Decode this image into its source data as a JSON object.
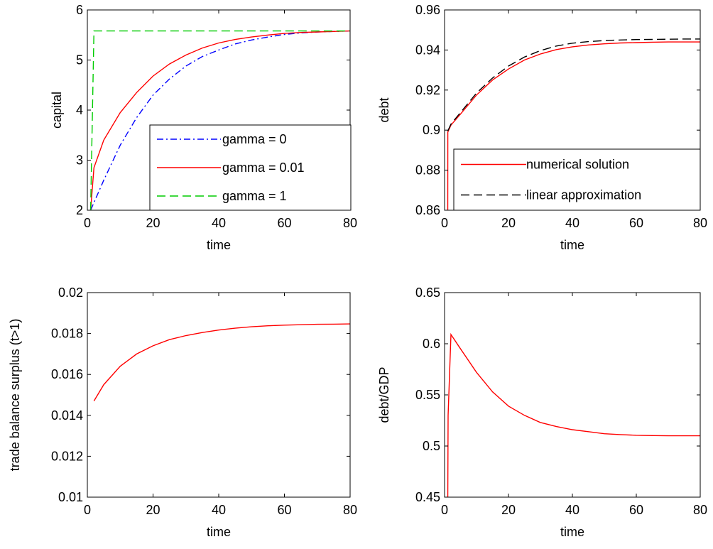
{
  "chart_data": [
    {
      "type": "line",
      "xlabel": "time",
      "ylabel": "capital",
      "xlim": [
        0,
        80
      ],
      "ylim": [
        2,
        6
      ],
      "xticks": [
        "0",
        "20",
        "40",
        "60",
        "80"
      ],
      "yticks": [
        "2",
        "3",
        "4",
        "5",
        "6"
      ],
      "grid": false,
      "legend_position": "bottom-right",
      "series": [
        {
          "name": "gamma = 0",
          "color": "#0000ff",
          "dash": "dash-dot",
          "x": [
            1,
            5,
            10,
            15,
            20,
            25,
            30,
            35,
            40,
            45,
            50,
            55,
            60,
            65,
            70,
            75,
            80
          ],
          "y": [
            2.0,
            2.6,
            3.3,
            3.85,
            4.3,
            4.62,
            4.88,
            5.07,
            5.2,
            5.32,
            5.4,
            5.46,
            5.51,
            5.54,
            5.56,
            5.57,
            5.58
          ]
        },
        {
          "name": "gamma = 0.01",
          "color": "#ff0000",
          "dash": "solid",
          "x": [
            1,
            2,
            5,
            10,
            15,
            20,
            25,
            30,
            35,
            40,
            45,
            50,
            55,
            60,
            65,
            70,
            75,
            80
          ],
          "y": [
            2.0,
            2.85,
            3.4,
            3.95,
            4.35,
            4.68,
            4.92,
            5.1,
            5.24,
            5.34,
            5.41,
            5.46,
            5.5,
            5.53,
            5.55,
            5.56,
            5.57,
            5.58
          ]
        },
        {
          "name": "gamma = 1",
          "color": "#00cc00",
          "dash": "dashed",
          "x": [
            1,
            2,
            10,
            20,
            40,
            60,
            80
          ],
          "y": [
            2.0,
            5.58,
            5.58,
            5.58,
            5.58,
            5.58,
            5.58
          ]
        }
      ]
    },
    {
      "type": "line",
      "xlabel": "time",
      "ylabel": "debt",
      "xlim": [
        0,
        80
      ],
      "ylim": [
        0.86,
        0.96
      ],
      "xticks": [
        "0",
        "20",
        "40",
        "60",
        "80"
      ],
      "yticks": [
        "0.86",
        "0.88",
        "0.9",
        "0.92",
        "0.94",
        "0.96"
      ],
      "grid": false,
      "legend_position": "bottom-right",
      "series": [
        {
          "name": "numerical solution",
          "color": "#ff0000",
          "dash": "solid",
          "x": [
            1,
            1.02,
            2,
            5,
            10,
            15,
            20,
            25,
            30,
            35,
            40,
            45,
            50,
            55,
            60,
            65,
            70,
            75,
            80
          ],
          "y": [
            0.855,
            0.899,
            0.9025,
            0.908,
            0.9175,
            0.925,
            0.9305,
            0.935,
            0.938,
            0.9402,
            0.9416,
            0.9425,
            0.9431,
            0.9435,
            0.9437,
            0.9439,
            0.944,
            0.944,
            0.944
          ]
        },
        {
          "name": "linear approximation",
          "color": "#000000",
          "dash": "dashed",
          "x": [
            1,
            2,
            5,
            10,
            15,
            20,
            25,
            30,
            35,
            40,
            45,
            50,
            55,
            60,
            65,
            70,
            75,
            80
          ],
          "y": [
            0.8995,
            0.903,
            0.9088,
            0.9185,
            0.926,
            0.932,
            0.9365,
            0.9397,
            0.942,
            0.9434,
            0.9442,
            0.9447,
            0.945,
            0.9452,
            0.9453,
            0.9454,
            0.9455,
            0.9455
          ]
        }
      ]
    },
    {
      "type": "line",
      "xlabel": "time",
      "ylabel": "trade balance surplus (t>1)",
      "xlim": [
        0,
        80
      ],
      "ylim": [
        0.01,
        0.02
      ],
      "xticks": [
        "0",
        "20",
        "40",
        "60",
        "80"
      ],
      "yticks": [
        "0.01",
        "0.012",
        "0.014",
        "0.016",
        "0.018",
        "0.02"
      ],
      "grid": false,
      "series": [
        {
          "color": "#ff0000",
          "dash": "solid",
          "x": [
            2,
            5,
            10,
            15,
            20,
            25,
            30,
            35,
            40,
            45,
            50,
            55,
            60,
            65,
            70,
            75,
            80
          ],
          "y": [
            0.0147,
            0.0155,
            0.0164,
            0.017,
            0.0174,
            0.0177,
            0.0179,
            0.01805,
            0.01817,
            0.01826,
            0.01833,
            0.01838,
            0.01841,
            0.01843,
            0.01845,
            0.01846,
            0.01847
          ]
        }
      ]
    },
    {
      "type": "line",
      "xlabel": "time",
      "ylabel": "debt/GDP",
      "xlim": [
        0,
        80
      ],
      "ylim": [
        0.45,
        0.65
      ],
      "xticks": [
        "0",
        "20",
        "40",
        "60",
        "80"
      ],
      "yticks": [
        "0.45",
        "0.5",
        "0.55",
        "0.6",
        "0.65"
      ],
      "grid": false,
      "series": [
        {
          "color": "#ff0000",
          "dash": "solid",
          "x": [
            1,
            1.1,
            2,
            5,
            10,
            15,
            20,
            25,
            30,
            35,
            40,
            45,
            50,
            55,
            60,
            65,
            70,
            75,
            80
          ],
          "y": [
            0.44,
            0.53,
            0.609,
            0.595,
            0.572,
            0.553,
            0.539,
            0.53,
            0.523,
            0.519,
            0.516,
            0.514,
            0.512,
            0.5112,
            0.5105,
            0.5102,
            0.51,
            0.51,
            0.51
          ]
        }
      ]
    }
  ]
}
